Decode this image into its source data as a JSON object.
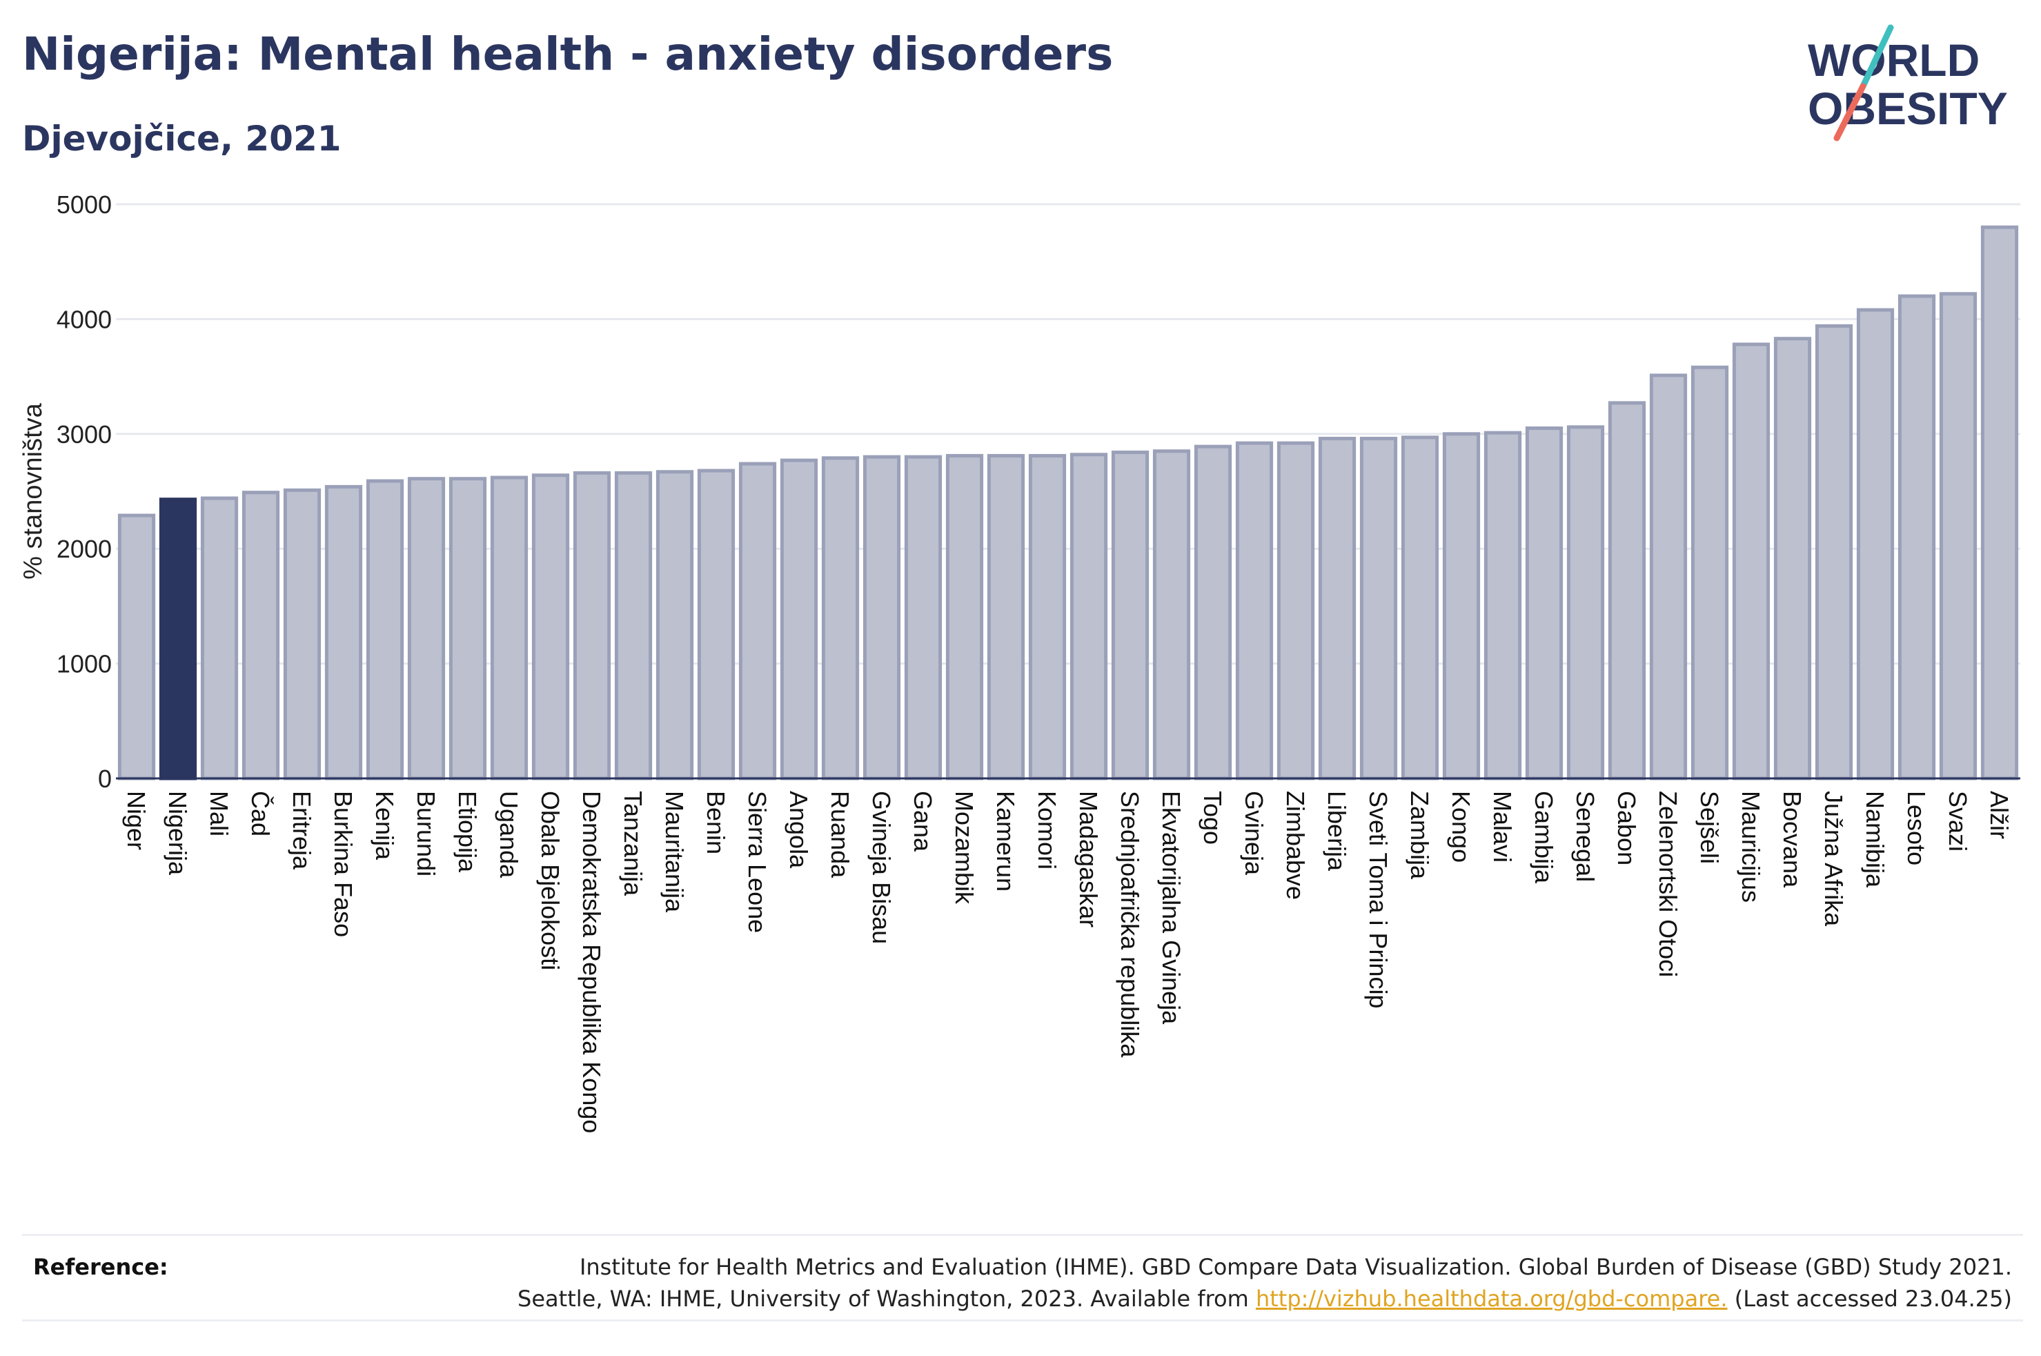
{
  "title": "Nigerija: Mental health - anxiety disorders",
  "subtitle": "Djevojčice, 2021",
  "logo": {
    "line1": "WORLD",
    "line2": "OBESITY"
  },
  "colors": {
    "highlight": "#2b3660",
    "bar": "#bcc0cf",
    "bar_stroke": "#9aa0b8",
    "grid": "#e6e8ee",
    "link": "#e0a422",
    "logo_teal": "#3fbfbf",
    "logo_coral": "#ec6a5c"
  },
  "chart_data": {
    "type": "bar",
    "ylabel": "% stanovništva",
    "xlabel": "",
    "ylim": [
      0,
      5000
    ],
    "yticks": [
      0,
      1000,
      2000,
      3000,
      4000,
      5000
    ],
    "highlight": "Nigerija",
    "categories": [
      "Niger",
      "Nigerija",
      "Mali",
      "Čad",
      "Eritreja",
      "Burkina Faso",
      "Kenija",
      "Burundi",
      "Etiopija",
      "Uganda",
      "Obala Bjelokosti",
      "Demokratska Republika Kongo",
      "Tanzanija",
      "Mauritanija",
      "Benin",
      "Sierra Leone",
      "Angola",
      "Ruanda",
      "Gvineja Bisau",
      "Gana",
      "Mozambik",
      "Kamerun",
      "Komori",
      "Madagaskar",
      "Srednjoafrička republika",
      "Ekvatorijalna Gvineja",
      "Togo",
      "Gvineja",
      "Zimbabve",
      "Liberija",
      "Sveti Toma i Princip",
      "Zambija",
      "Kongo",
      "Malavi",
      "Gambija",
      "Senegal",
      "Gabon",
      "Zelenortski Otoci",
      "Sejšeli",
      "Mauricijus",
      "Bocvana",
      "Južna Afrika",
      "Namibija",
      "Lesoto",
      "Svazi",
      "Alžir"
    ],
    "values": [
      2290,
      2430,
      2440,
      2490,
      2510,
      2540,
      2590,
      2610,
      2610,
      2620,
      2640,
      2660,
      2660,
      2670,
      2680,
      2740,
      2770,
      2790,
      2800,
      2800,
      2810,
      2810,
      2810,
      2820,
      2840,
      2850,
      2890,
      2920,
      2920,
      2960,
      2960,
      2970,
      3000,
      3010,
      3050,
      3060,
      3270,
      3510,
      3580,
      3780,
      3830,
      3940,
      4080,
      4200,
      4220,
      4800
    ]
  },
  "reference": {
    "label": "Reference:",
    "line1": "Institute for Health Metrics and Evaluation (IHME). GBD Compare Data Visualization. Global Burden of Disease (GBD) Study 2021.",
    "line2_pre": "Seattle, WA: IHME, University of Washington, 2023. Available from ",
    "link": "http://vizhub.healthdata.org/gbd-compare.",
    "line2_post": " (Last accessed 23.04.25)"
  }
}
